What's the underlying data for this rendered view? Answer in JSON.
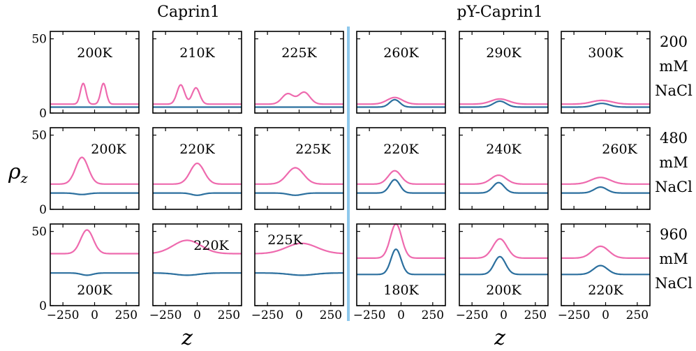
{
  "chart_data": {
    "type": "line",
    "xlabel": "z",
    "ylabel": "ρ",
    "ylabel_sub": "z",
    "xlim": [
      -350,
      350
    ],
    "ylim": [
      0,
      55
    ],
    "xticks": [
      -250,
      0,
      250
    ],
    "xtick_labels": [
      "−250",
      "0",
      "250"
    ],
    "yticks": [
      0,
      50
    ],
    "ytick_labels": [
      "0",
      "50"
    ],
    "groups": [
      "Caprin1",
      "pY-Caprin1"
    ],
    "rows": [
      {
        "line1": "200",
        "line2": "mM",
        "line3": "NaCl"
      },
      {
        "line1": "480",
        "line2": "mM",
        "line3": "NaCl"
      },
      {
        "line1": "960",
        "line2": "mM",
        "line3": "NaCl"
      }
    ],
    "colors": {
      "pink": "#ee6aae",
      "blue": "#2b6f9e",
      "divider": "#8ec8ec"
    },
    "panels": [
      {
        "row": 0,
        "col": 0,
        "label": "200K",
        "pos": "top",
        "pink": {
          "base": 6,
          "peaks": [
            [
              -90,
              14,
              22
            ],
            [
              70,
              14,
              22
            ]
          ]
        },
        "blue": {
          "base": 4,
          "peaks": []
        }
      },
      {
        "row": 0,
        "col": 1,
        "label": "210K",
        "pos": "top",
        "pink": {
          "base": 6,
          "peaks": [
            [
              -130,
              13,
              30
            ],
            [
              -10,
              11,
              30
            ]
          ]
        },
        "blue": {
          "base": 4,
          "peaks": []
        }
      },
      {
        "row": 0,
        "col": 2,
        "label": "225K",
        "pos": "top",
        "pink": {
          "base": 6,
          "peaks": [
            [
              -90,
              7,
              45
            ],
            [
              40,
              8,
              45
            ]
          ]
        },
        "blue": {
          "base": 4,
          "peaks": []
        }
      },
      {
        "row": 0,
        "col": 3,
        "label": "260K",
        "pos": "top",
        "pink": {
          "base": 6,
          "peaks": [
            [
              -50,
              4.5,
              60
            ]
          ]
        },
        "blue": {
          "base": 4,
          "peaks": [
            [
              -50,
              5,
              40
            ]
          ]
        }
      },
      {
        "row": 0,
        "col": 4,
        "label": "290K",
        "pos": "top",
        "pink": {
          "base": 6,
          "peaks": [
            [
              -30,
              3.5,
              70
            ]
          ]
        },
        "blue": {
          "base": 4,
          "peaks": [
            [
              -30,
              4,
              50
            ]
          ]
        }
      },
      {
        "row": 0,
        "col": 5,
        "label": "300K",
        "pos": "top",
        "pink": {
          "base": 6,
          "peaks": [
            [
              -30,
              2.5,
              80
            ]
          ]
        },
        "blue": {
          "base": 4,
          "peaks": [
            [
              -30,
              2.5,
              60
            ]
          ]
        }
      },
      {
        "row": 1,
        "col": 0,
        "label": "200K",
        "pos": "top-right",
        "pink": {
          "base": 17,
          "peaks": [
            [
              -100,
              18,
              50
            ]
          ]
        },
        "blue": {
          "base": 11,
          "peaks": [
            [
              -100,
              -1,
              50
            ]
          ]
        }
      },
      {
        "row": 1,
        "col": 1,
        "label": "220K",
        "pos": "top",
        "pink": {
          "base": 17,
          "peaks": [
            [
              0,
              14,
              55
            ]
          ]
        },
        "blue": {
          "base": 11,
          "peaks": [
            [
              0,
              -1.5,
              45
            ]
          ]
        }
      },
      {
        "row": 1,
        "col": 2,
        "label": "225K",
        "pos": "top-right",
        "pink": {
          "base": 17,
          "peaks": [
            [
              -30,
              11,
              65
            ]
          ]
        },
        "blue": {
          "base": 11,
          "peaks": [
            [
              -30,
              -1.5,
              55
            ]
          ]
        }
      },
      {
        "row": 1,
        "col": 3,
        "label": "220K",
        "pos": "top",
        "pink": {
          "base": 17,
          "peaks": [
            [
              -50,
              9,
              50
            ]
          ]
        },
        "blue": {
          "base": 11,
          "peaks": [
            [
              -50,
              9,
              40
            ]
          ]
        }
      },
      {
        "row": 1,
        "col": 4,
        "label": "240K",
        "pos": "top",
        "pink": {
          "base": 17,
          "peaks": [
            [
              -40,
              6,
              60
            ]
          ]
        },
        "blue": {
          "base": 11,
          "peaks": [
            [
              -40,
              7,
              45
            ]
          ]
        }
      },
      {
        "row": 1,
        "col": 5,
        "label": "260K",
        "pos": "top-right",
        "pink": {
          "base": 17,
          "peaks": [
            [
              -40,
              4.5,
              75
            ]
          ]
        },
        "blue": {
          "base": 11,
          "peaks": [
            [
              -40,
              4,
              50
            ]
          ]
        }
      },
      {
        "row": 2,
        "col": 0,
        "label": "200K",
        "pos": "bottom",
        "pink": {
          "base": 35,
          "peaks": [
            [
              -60,
              16,
              50
            ]
          ]
        },
        "blue": {
          "base": 22,
          "peaks": [
            [
              -60,
              -1.5,
              45
            ]
          ]
        }
      },
      {
        "row": 2,
        "col": 1,
        "label": "220K",
        "pos": "top-right",
        "pink": {
          "base": 35,
          "peaks": [
            [
              -80,
              9,
              110
            ]
          ]
        },
        "blue": {
          "base": 22,
          "peaks": [
            [
              -80,
              -1.5,
              90
            ]
          ]
        }
      },
      {
        "row": 2,
        "col": 2,
        "label": "225K",
        "pos": "top-left",
        "pink": {
          "base": 35,
          "peaks": [
            [
              20,
              7,
              120
            ]
          ]
        },
        "blue": {
          "base": 22,
          "peaks": [
            [
              20,
              -1.5,
              100
            ]
          ]
        }
      },
      {
        "row": 2,
        "col": 3,
        "label": "180K",
        "pos": "bottom",
        "pink": {
          "base": 32,
          "peaks": [
            [
              -40,
              23,
              45
            ]
          ]
        },
        "blue": {
          "base": 21,
          "peaks": [
            [
              -40,
              17,
              40
            ]
          ]
        }
      },
      {
        "row": 2,
        "col": 4,
        "label": "200K",
        "pos": "bottom",
        "pink": {
          "base": 32,
          "peaks": [
            [
              -30,
              13,
              55
            ]
          ]
        },
        "blue": {
          "base": 21,
          "peaks": [
            [
              -30,
              12,
              45
            ]
          ]
        }
      },
      {
        "row": 2,
        "col": 5,
        "label": "220K",
        "pos": "bottom",
        "pink": {
          "base": 32,
          "peaks": [
            [
              -40,
              8,
              65
            ]
          ]
        },
        "blue": {
          "base": 21,
          "peaks": [
            [
              -40,
              6,
              55
            ]
          ]
        }
      }
    ]
  }
}
